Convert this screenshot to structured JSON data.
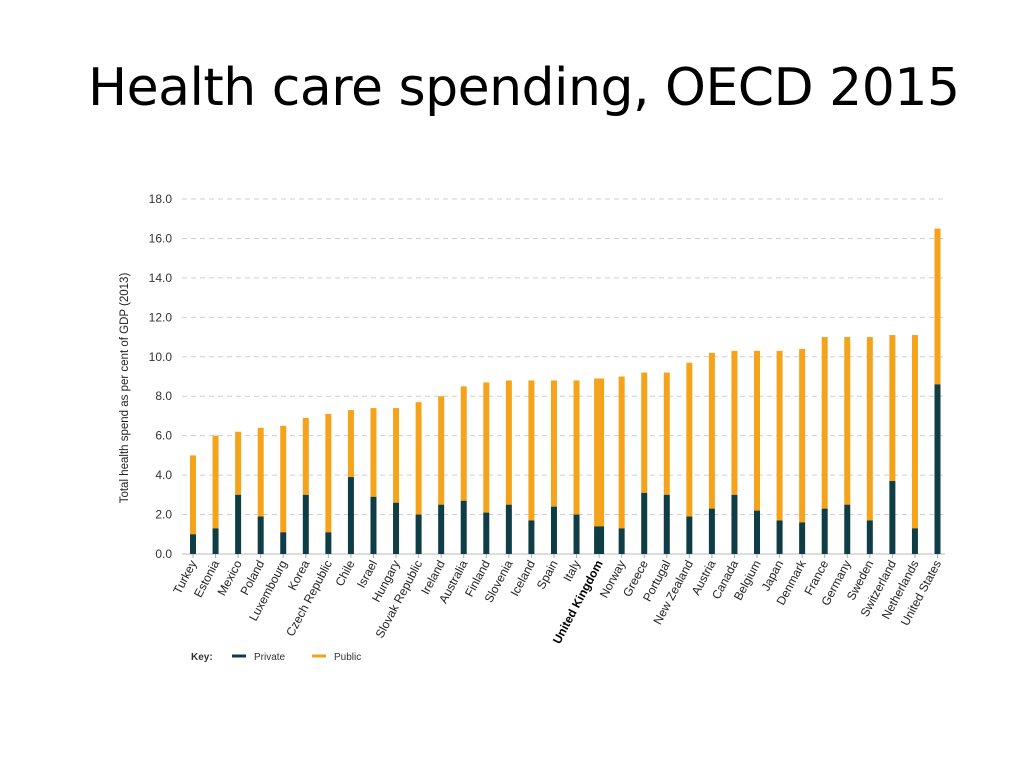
{
  "slide": {
    "title": "Health care spending, OECD 2015"
  },
  "colors": {
    "private": "#0e3d45",
    "public": "#f5a31a",
    "grid": "#cfcfcf"
  },
  "chart_data": {
    "type": "bar",
    "stacked": true,
    "title": "",
    "xlabel": "",
    "ylabel": "Total health spend as per cent of GDP (2013)",
    "ylim": [
      0,
      18
    ],
    "yticks": [
      "0.0",
      "2.0",
      "4.0",
      "6.0",
      "8.0",
      "10.0",
      "12.0",
      "14.0",
      "16.0",
      "18.0"
    ],
    "highlight": "United Kingdom",
    "categories": [
      "Turkey",
      "Estonia",
      "Mexico",
      "Poland",
      "Luxembourg",
      "Korea",
      "Czech Republic",
      "Chile",
      "Israel",
      "Hungary",
      "Slovak Republic",
      "Ireland",
      "Australia",
      "Finland",
      "Slovenia",
      "Iceland",
      "Spain",
      "Italy",
      "United Kingdom",
      "Norway",
      "Greece",
      "Portugal",
      "New Zealand",
      "Austria",
      "Canada",
      "Belgium",
      "Japan",
      "Denmark",
      "France",
      "Germany",
      "Sweden",
      "Switzerland",
      "Netherlands",
      "United States"
    ],
    "series": [
      {
        "name": "Private",
        "values": [
          1.0,
          1.3,
          3.0,
          1.9,
          1.1,
          3.0,
          1.1,
          3.9,
          2.9,
          2.6,
          2.0,
          2.5,
          2.7,
          2.1,
          2.5,
          1.7,
          2.4,
          2.0,
          1.4,
          1.3,
          3.1,
          3.0,
          1.9,
          2.3,
          3.0,
          2.2,
          1.7,
          1.6,
          2.3,
          2.5,
          1.7,
          3.7,
          1.3,
          8.6
        ]
      },
      {
        "name": "Public",
        "values": [
          4.0,
          4.7,
          3.2,
          4.5,
          5.4,
          3.9,
          6.0,
          3.4,
          4.5,
          4.8,
          5.7,
          5.5,
          5.8,
          6.6,
          6.3,
          7.1,
          6.4,
          6.8,
          7.5,
          7.7,
          6.1,
          6.2,
          7.8,
          7.9,
          7.3,
          8.1,
          8.6,
          8.8,
          8.7,
          8.5,
          9.3,
          7.4,
          9.8,
          7.9
        ]
      }
    ],
    "legend": {
      "title": "Key:",
      "position": "bottom-left"
    }
  }
}
